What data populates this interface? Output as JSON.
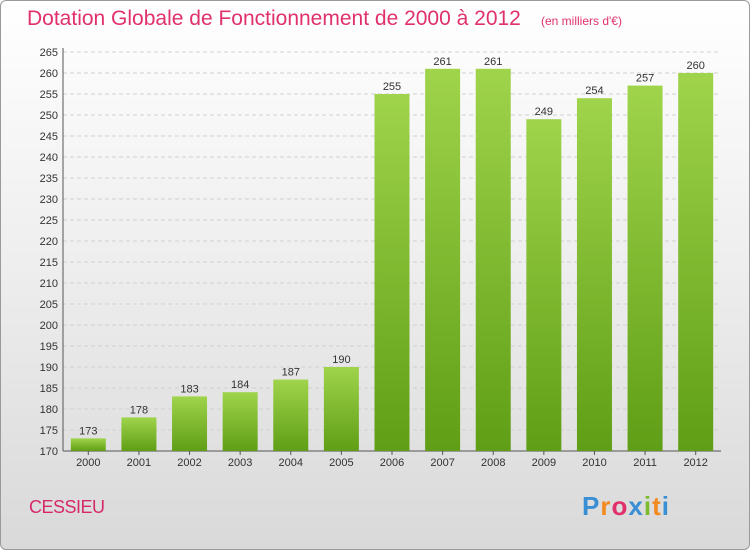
{
  "header": {
    "title": "Dotation Globale de Fonctionnement de 2000 à 2012",
    "unit_note": "(en milliers d'€)"
  },
  "footer": {
    "commune": "CESSIEU",
    "logo": [
      "P",
      "r",
      "o",
      "x",
      "i",
      "t",
      "i"
    ],
    "logo_colors": [
      "#3a8fd4",
      "#f28a1e",
      "#e0316b",
      "#3a8fd4",
      "#7cbc2c",
      "#f28a1e",
      "#3a8fd4"
    ]
  },
  "colors": {
    "title": "#e0316b",
    "bar_light": "#9fd44b",
    "bar_dark": "#5f9e16",
    "grid": "#d0d0d0"
  },
  "chart_data": {
    "type": "bar",
    "title": "Dotation Globale de Fonctionnement de 2000 à 2012",
    "subtitle": "(en milliers d'€)",
    "categories": [
      "2000",
      "2001",
      "2002",
      "2003",
      "2004",
      "2005",
      "2006",
      "2007",
      "2008",
      "2009",
      "2010",
      "2011",
      "2012"
    ],
    "values": [
      173,
      178,
      183,
      184,
      187,
      190,
      255,
      261,
      261,
      249,
      254,
      257,
      260
    ],
    "ylim": [
      170,
      265
    ],
    "ytick_step": 5,
    "grid": true,
    "legend": "none"
  }
}
